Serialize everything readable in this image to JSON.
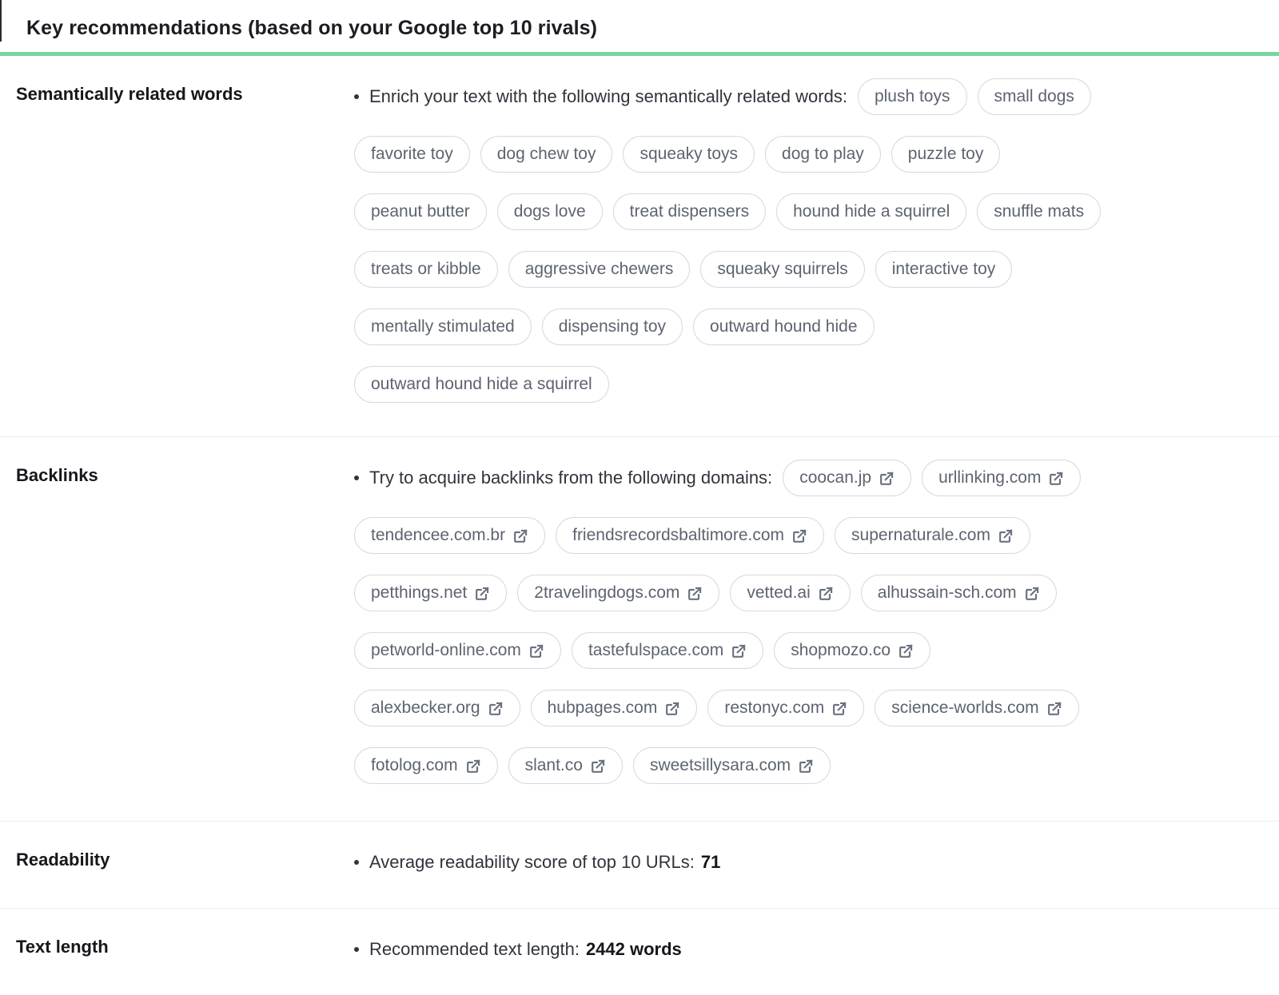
{
  "header": {
    "title": "Key recommendations (based on your Google top 10 rivals)"
  },
  "colors": {
    "accent_green": "#77d5a3",
    "chip_border": "#d5d9e0",
    "chip_text": "#5d6470"
  },
  "sections": {
    "semantic": {
      "label": "Semantically related words",
      "lead": "Enrich your text with the following semantically related words:",
      "words": [
        "plush toys",
        "small dogs",
        "favorite toy",
        "dog chew toy",
        "squeaky toys",
        "dog to play",
        "puzzle toy",
        "peanut butter",
        "dogs love",
        "treat dispensers",
        "hound hide a squirrel",
        "snuffle mats",
        "treats or kibble",
        "aggressive chewers",
        "squeaky squirrels",
        "interactive toy",
        "mentally stimulated",
        "dispensing toy",
        "outward hound hide",
        "outward hound hide a squirrel"
      ]
    },
    "backlinks": {
      "label": "Backlinks",
      "lead": "Try to acquire backlinks from the following domains:",
      "domains": [
        "coocan.jp",
        "urllinking.com",
        "tendencee.com.br",
        "friendsrecordsbaltimore.com",
        "supernaturale.com",
        "petthings.net",
        "2travelingdogs.com",
        "vetted.ai",
        "alhussain-sch.com",
        "petworld-online.com",
        "tastefulspace.com",
        "shopmozo.co",
        "alexbecker.org",
        "hubpages.com",
        "restonyc.com",
        "science-worlds.com",
        "fotolog.com",
        "slant.co",
        "sweetsillysara.com"
      ]
    },
    "readability": {
      "label": "Readability",
      "lead": "Average readability score of top 10 URLs:",
      "value": "71"
    },
    "text_length": {
      "label": "Text length",
      "lead": "Recommended text length:",
      "value": "2442 words"
    }
  }
}
